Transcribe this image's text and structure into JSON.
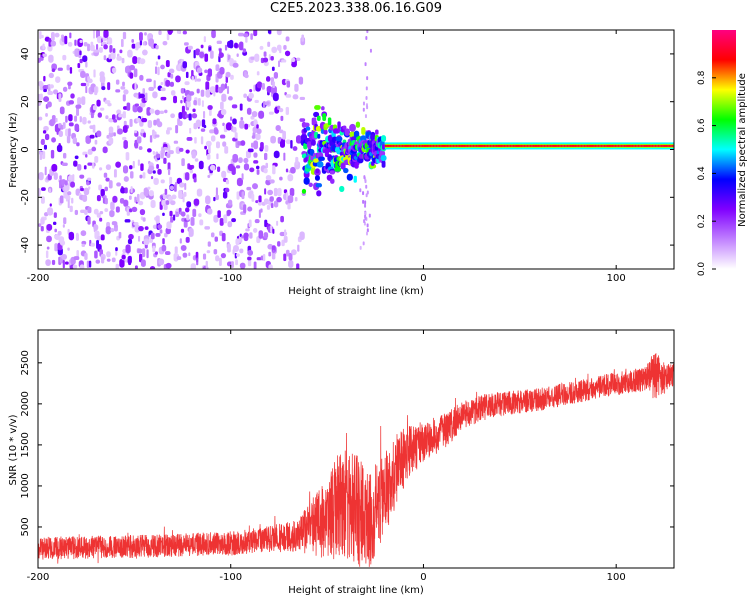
{
  "title": "C2E5.2023.338.06.16.G09",
  "chart_data": [
    {
      "type": "heatmap",
      "xlabel": "Height of straight line (km)",
      "ylabel": "Frequency (Hz)",
      "xlim": [
        -200,
        130
      ],
      "ylim": [
        -50,
        50
      ],
      "xticks": [
        -200,
        -100,
        0,
        100
      ],
      "yticks": [
        -40,
        -20,
        0,
        20,
        40
      ],
      "xtick_labels": [
        "-200",
        "-100",
        "0",
        "100"
      ],
      "ytick_labels": [
        "-40",
        "-20",
        "0",
        "20",
        "40"
      ],
      "colorbar": {
        "label": "Normalized spectral amplitude",
        "range": [
          0,
          1
        ],
        "ticks": [
          0.0,
          0.2,
          0.4,
          0.6,
          0.8
        ],
        "tick_labels": [
          "0.0",
          "0.2",
          "0.4",
          "0.6",
          "0.8"
        ],
        "colors": [
          "#ffffff",
          "#c080ff",
          "#8000ff",
          "#0000ff",
          "#00ffff",
          "#00ff00",
          "#ffff00",
          "#ff0000",
          "#ff0080"
        ]
      },
      "features": {
        "noise_region_km": [
          -200,
          -62
        ],
        "noise_fade_km": [
          -80,
          -60
        ],
        "transition_km": [
          -62,
          -20
        ],
        "carrier_start_km": -20,
        "carrier_end_km": 130,
        "carrier_freq_hz": 1.5,
        "carrier_amplitude": 0.9
      }
    },
    {
      "type": "line",
      "xlabel": "Height of straight line (km)",
      "ylabel": "SNR (10 * v/v)",
      "xlim": [
        -200,
        130
      ],
      "ylim": [
        0,
        2900
      ],
      "xticks": [
        -200,
        -100,
        0,
        100
      ],
      "yticks": [
        500,
        1000,
        1500,
        2000,
        2500
      ],
      "xtick_labels": [
        "-200",
        "-100",
        "0",
        "100"
      ],
      "ytick_labels": [
        "500",
        "1000",
        "1500",
        "2000",
        "2500"
      ],
      "color": "#ee3333",
      "series": [
        {
          "name": "SNR",
          "x": [
            -200,
            -150,
            -100,
            -80,
            -65,
            -50,
            -42,
            -35,
            -28,
            -20,
            -12,
            -5,
            0,
            10,
            20,
            30,
            40,
            60,
            80,
            100,
            115,
            120,
            125,
            130
          ],
          "y": [
            240,
            260,
            300,
            350,
            400,
            600,
            800,
            700,
            600,
            900,
            1300,
            1450,
            1550,
            1650,
            1850,
            1950,
            2000,
            2050,
            2150,
            2250,
            2300,
            2350,
            2300,
            2350
          ],
          "spread": [
            140,
            140,
            150,
            160,
            200,
            500,
            700,
            700,
            600,
            500,
            400,
            300,
            250,
            220,
            180,
            160,
            150,
            140,
            140,
            140,
            150,
            300,
            200,
            150
          ]
        }
      ]
    }
  ]
}
